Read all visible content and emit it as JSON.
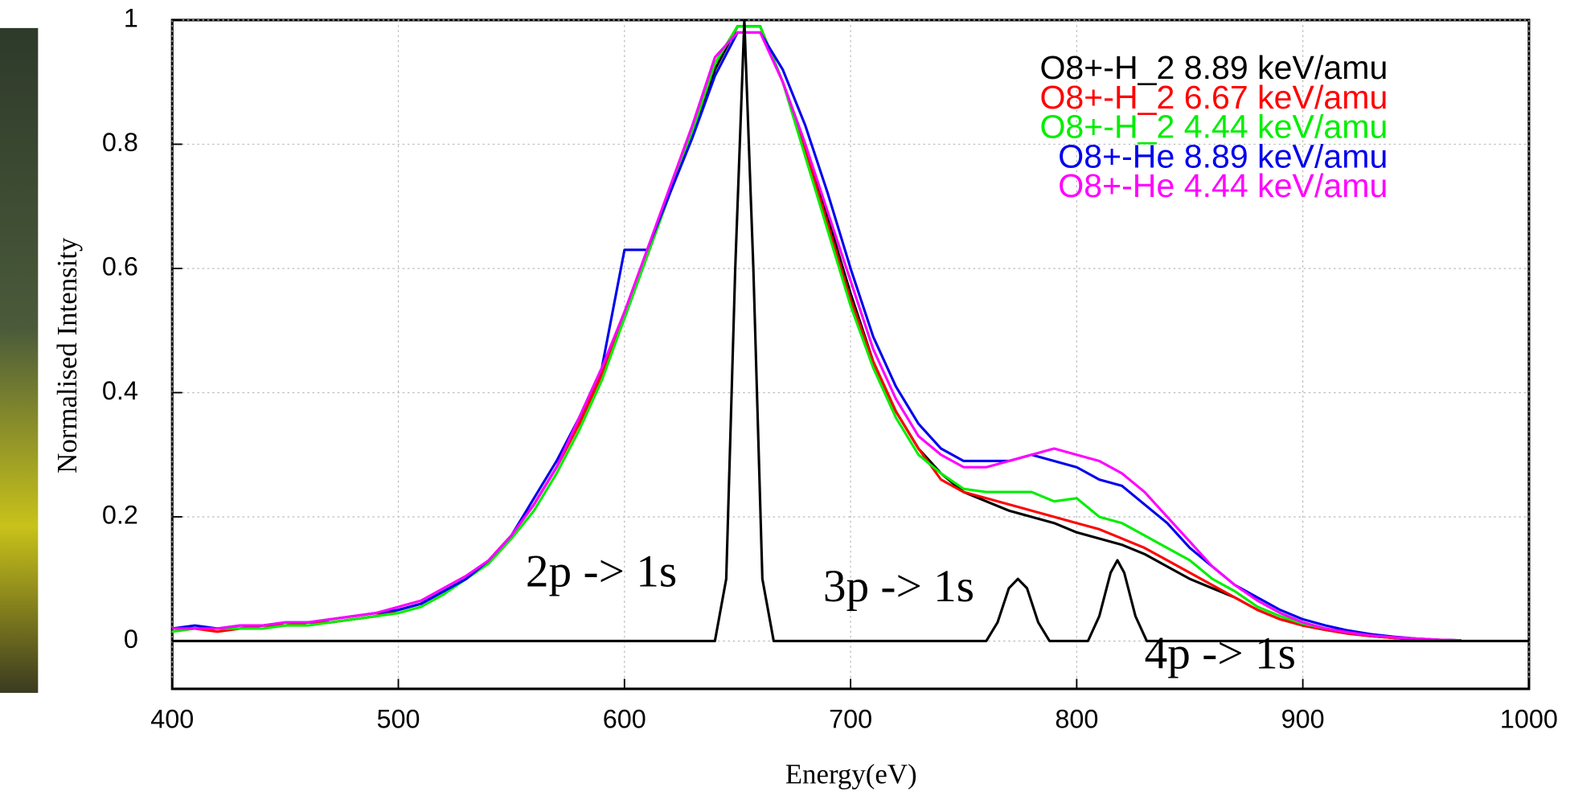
{
  "chart_data": {
    "type": "line",
    "xlabel": "Energy(eV)",
    "ylabel": "Normalised Intensity",
    "xlim": [
      400,
      1000
    ],
    "ylim": [
      -0.077,
      1
    ],
    "xticks": [
      400,
      500,
      600,
      700,
      800,
      900,
      1000
    ],
    "yticks": [
      0,
      0.2,
      0.4,
      0.6,
      0.8,
      1
    ],
    "grid": true,
    "legend": "upper right",
    "annotations": [
      "2p -> 1s",
      "3p -> 1s",
      "4p -> 1s"
    ],
    "x": [
      400,
      410,
      420,
      430,
      440,
      450,
      460,
      470,
      480,
      490,
      500,
      510,
      520,
      530,
      540,
      550,
      560,
      570,
      580,
      590,
      600,
      610,
      620,
      630,
      640,
      650,
      660,
      670,
      680,
      690,
      700,
      710,
      720,
      730,
      740,
      750,
      760,
      770,
      780,
      790,
      800,
      810,
      820,
      830,
      840,
      850,
      860,
      870,
      880,
      890,
      900,
      910,
      920,
      930,
      940,
      950,
      960,
      970
    ],
    "series": [
      {
        "name": "O8+-H_2 8.89 keV/amu",
        "color": "#000000",
        "values": [
          0.02,
          0.02,
          0.02,
          0.02,
          0.025,
          0.025,
          0.03,
          0.03,
          0.035,
          0.04,
          0.05,
          0.06,
          0.08,
          0.1,
          0.13,
          0.17,
          0.22,
          0.28,
          0.35,
          0.43,
          0.52,
          0.62,
          0.72,
          0.82,
          0.92,
          0.99,
          0.99,
          0.9,
          0.8,
          0.68,
          0.56,
          0.45,
          0.37,
          0.31,
          0.27,
          0.24,
          0.225,
          0.21,
          0.2,
          0.19,
          0.175,
          0.165,
          0.155,
          0.14,
          0.12,
          0.1,
          0.085,
          0.07,
          0.05,
          0.035,
          0.025,
          0.018,
          0.012,
          0.008,
          0.005,
          0.003,
          0.002,
          0.001
        ]
      },
      {
        "name": "O8+-H_2 6.67 keV/amu",
        "color": "#ff0000",
        "values": [
          0.02,
          0.02,
          0.015,
          0.02,
          0.025,
          0.025,
          0.03,
          0.03,
          0.035,
          0.04,
          0.05,
          0.06,
          0.08,
          0.1,
          0.13,
          0.17,
          0.22,
          0.28,
          0.35,
          0.43,
          0.53,
          0.62,
          0.72,
          0.82,
          0.93,
          0.99,
          0.99,
          0.9,
          0.79,
          0.67,
          0.55,
          0.45,
          0.37,
          0.31,
          0.26,
          0.24,
          0.23,
          0.22,
          0.21,
          0.2,
          0.19,
          0.18,
          0.165,
          0.15,
          0.13,
          0.11,
          0.09,
          0.07,
          0.05,
          0.035,
          0.025,
          0.018,
          0.012,
          0.008,
          0.005,
          0.003,
          0.002,
          0.001
        ]
      },
      {
        "name": "O8+-H_2 4.44 keV/amu",
        "color": "#00ee00",
        "values": [
          0.015,
          0.02,
          0.02,
          0.02,
          0.02,
          0.025,
          0.025,
          0.03,
          0.035,
          0.04,
          0.045,
          0.055,
          0.075,
          0.1,
          0.125,
          0.165,
          0.21,
          0.27,
          0.34,
          0.42,
          0.52,
          0.62,
          0.72,
          0.82,
          0.93,
          0.99,
          0.99,
          0.9,
          0.78,
          0.66,
          0.54,
          0.44,
          0.36,
          0.3,
          0.27,
          0.245,
          0.24,
          0.24,
          0.24,
          0.225,
          0.23,
          0.2,
          0.19,
          0.17,
          0.15,
          0.13,
          0.1,
          0.08,
          0.055,
          0.04,
          0.028,
          0.02,
          0.014,
          0.009,
          0.006,
          0.004,
          0.002,
          0.001
        ]
      },
      {
        "name": "O8+-He 8.89 keV/amu",
        "color": "#0000ee",
        "values": [
          0.02,
          0.025,
          0.02,
          0.025,
          0.025,
          0.03,
          0.03,
          0.035,
          0.04,
          0.045,
          0.05,
          0.06,
          0.08,
          0.1,
          0.13,
          0.17,
          0.23,
          0.29,
          0.36,
          0.44,
          0.63,
          0.63,
          0.72,
          0.81,
          0.91,
          0.98,
          0.98,
          0.92,
          0.83,
          0.72,
          0.6,
          0.49,
          0.41,
          0.35,
          0.31,
          0.29,
          0.29,
          0.29,
          0.3,
          0.29,
          0.28,
          0.26,
          0.25,
          0.22,
          0.19,
          0.15,
          0.12,
          0.09,
          0.07,
          0.05,
          0.035,
          0.025,
          0.017,
          0.011,
          0.007,
          0.004,
          0.002,
          0.001
        ]
      },
      {
        "name": "O8+-He 4.44 keV/amu",
        "color": "#ff00ff",
        "values": [
          0.02,
          0.02,
          0.02,
          0.025,
          0.025,
          0.03,
          0.03,
          0.035,
          0.04,
          0.045,
          0.055,
          0.065,
          0.085,
          0.105,
          0.13,
          0.17,
          0.22,
          0.28,
          0.36,
          0.44,
          0.53,
          0.63,
          0.73,
          0.83,
          0.94,
          0.98,
          0.98,
          0.9,
          0.8,
          0.69,
          0.58,
          0.47,
          0.39,
          0.33,
          0.3,
          0.28,
          0.28,
          0.29,
          0.3,
          0.31,
          0.3,
          0.29,
          0.27,
          0.24,
          0.2,
          0.16,
          0.12,
          0.09,
          0.065,
          0.045,
          0.03,
          0.02,
          0.014,
          0.009,
          0.006,
          0.004,
          0.002,
          0.001
        ]
      },
      {
        "color": "#000000",
        "x": [
          400,
          640,
          645,
          649,
          653,
          657,
          661,
          666,
          760,
          765,
          770,
          774,
          778,
          783,
          788,
          805,
          810,
          815,
          818,
          821,
          826,
          831,
          1000
        ],
        "values": [
          0,
          0,
          0.1,
          0.6,
          1,
          0.6,
          0.1,
          0,
          0,
          0.03,
          0.085,
          0.1,
          0.085,
          0.03,
          0,
          0,
          0.04,
          0.11,
          0.13,
          0.11,
          0.04,
          0,
          0
        ]
      }
    ]
  }
}
